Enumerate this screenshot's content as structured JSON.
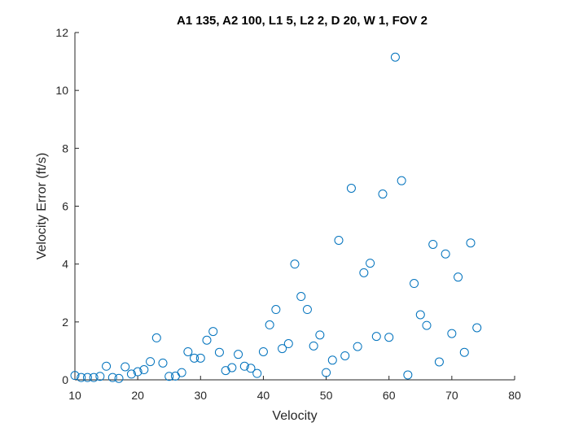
{
  "chart_data": {
    "type": "scatter",
    "title": "A1 135, A2 100, L1 5, L2 2, D 20, W 1, FOV 2",
    "xlabel": "Velocity",
    "ylabel": "Velocity Error (ft/s)",
    "xlim": [
      10,
      80
    ],
    "ylim": [
      0,
      12
    ],
    "xticks": [
      "10",
      "20",
      "30",
      "40",
      "50",
      "60",
      "70",
      "80"
    ],
    "yticks": [
      "0",
      "2",
      "4",
      "6",
      "8",
      "10",
      "12"
    ],
    "grid": false,
    "marker": "circle",
    "marker_color": "#0072BD",
    "points": [
      {
        "x": 10,
        "y": 0.15
      },
      {
        "x": 11,
        "y": 0.08
      },
      {
        "x": 12,
        "y": 0.08
      },
      {
        "x": 13,
        "y": 0.08
      },
      {
        "x": 14,
        "y": 0.12
      },
      {
        "x": 15,
        "y": 0.47
      },
      {
        "x": 16,
        "y": 0.08
      },
      {
        "x": 17,
        "y": 0.05
      },
      {
        "x": 18,
        "y": 0.45
      },
      {
        "x": 19,
        "y": 0.2
      },
      {
        "x": 20,
        "y": 0.28
      },
      {
        "x": 21,
        "y": 0.35
      },
      {
        "x": 22,
        "y": 0.63
      },
      {
        "x": 23,
        "y": 1.45
      },
      {
        "x": 24,
        "y": 0.58
      },
      {
        "x": 25,
        "y": 0.12
      },
      {
        "x": 26,
        "y": 0.13
      },
      {
        "x": 27,
        "y": 0.25
      },
      {
        "x": 28,
        "y": 0.97
      },
      {
        "x": 29,
        "y": 0.75
      },
      {
        "x": 30,
        "y": 0.75
      },
      {
        "x": 31,
        "y": 1.37
      },
      {
        "x": 32,
        "y": 1.67
      },
      {
        "x": 33,
        "y": 0.95
      },
      {
        "x": 34,
        "y": 0.32
      },
      {
        "x": 35,
        "y": 0.42
      },
      {
        "x": 36,
        "y": 0.88
      },
      {
        "x": 37,
        "y": 0.47
      },
      {
        "x": 38,
        "y": 0.4
      },
      {
        "x": 39,
        "y": 0.22
      },
      {
        "x": 40,
        "y": 0.97
      },
      {
        "x": 41,
        "y": 1.9
      },
      {
        "x": 42,
        "y": 2.43
      },
      {
        "x": 43,
        "y": 1.08
      },
      {
        "x": 44,
        "y": 1.25
      },
      {
        "x": 45,
        "y": 4.0
      },
      {
        "x": 46,
        "y": 2.88
      },
      {
        "x": 47,
        "y": 2.43
      },
      {
        "x": 48,
        "y": 1.17
      },
      {
        "x": 49,
        "y": 1.55
      },
      {
        "x": 50,
        "y": 0.25
      },
      {
        "x": 51,
        "y": 0.68
      },
      {
        "x": 52,
        "y": 4.82
      },
      {
        "x": 53,
        "y": 0.83
      },
      {
        "x": 54,
        "y": 6.62
      },
      {
        "x": 55,
        "y": 1.15
      },
      {
        "x": 56,
        "y": 3.7
      },
      {
        "x": 57,
        "y": 4.03
      },
      {
        "x": 58,
        "y": 1.5
      },
      {
        "x": 59,
        "y": 6.42
      },
      {
        "x": 60,
        "y": 1.47
      },
      {
        "x": 61,
        "y": 11.15
      },
      {
        "x": 62,
        "y": 6.88
      },
      {
        "x": 63,
        "y": 0.17
      },
      {
        "x": 64,
        "y": 3.33
      },
      {
        "x": 65,
        "y": 2.25
      },
      {
        "x": 66,
        "y": 1.88
      },
      {
        "x": 67,
        "y": 4.68
      },
      {
        "x": 68,
        "y": 0.62
      },
      {
        "x": 69,
        "y": 4.35
      },
      {
        "x": 70,
        "y": 1.6
      },
      {
        "x": 71,
        "y": 3.55
      },
      {
        "x": 72,
        "y": 0.95
      },
      {
        "x": 73,
        "y": 4.73
      },
      {
        "x": 74,
        "y": 1.8
      }
    ]
  }
}
